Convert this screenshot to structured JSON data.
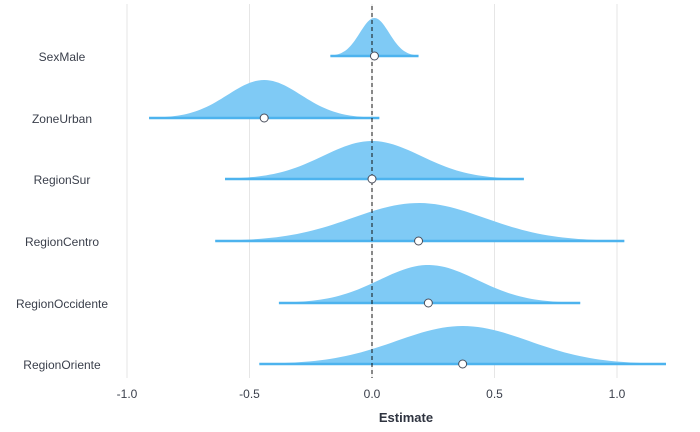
{
  "chart_data": {
    "type": "area",
    "xlabel": "Estimate",
    "ylabel": "",
    "xlim": [
      -1.0,
      1.2
    ],
    "xticks": [
      -1.0,
      -0.5,
      0.0,
      0.5,
      1.0
    ],
    "xtick_labels": [
      "-1.0",
      "-0.5",
      "0.0",
      "0.5",
      "1.0"
    ],
    "reference_line": 0,
    "grid": true,
    "colors": {
      "fill": "#7fcaf5",
      "interval_line": "#4db3ee",
      "point_fill": "#ffffff",
      "point_stroke": "#4a4f5c",
      "reference": "#111111"
    },
    "series": [
      {
        "term": "SexMale",
        "estimate": 0.01,
        "interval": [
          -0.17,
          0.19
        ],
        "sd": 0.06
      },
      {
        "term": "ZoneUrban",
        "estimate": -0.44,
        "interval": [
          -0.91,
          0.03
        ],
        "sd": 0.15
      },
      {
        "term": "RegionSur",
        "estimate": 0.0,
        "interval": [
          -0.6,
          0.62
        ],
        "sd": 0.2
      },
      {
        "term": "RegionCentro",
        "estimate": 0.19,
        "interval": [
          -0.64,
          1.03
        ],
        "sd": 0.27
      },
      {
        "term": "RegionOccidente",
        "estimate": 0.23,
        "interval": [
          -0.38,
          0.85
        ],
        "sd": 0.2
      },
      {
        "term": "RegionOriente",
        "estimate": 0.37,
        "interval": [
          -0.46,
          1.2
        ],
        "sd": 0.27
      }
    ]
  }
}
